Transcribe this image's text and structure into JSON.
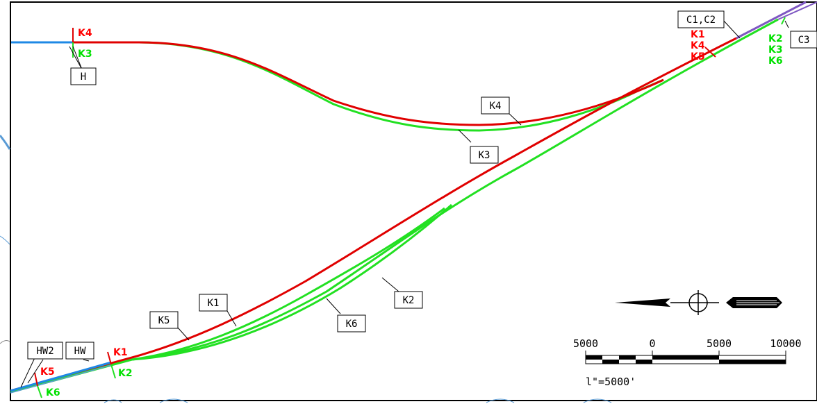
{
  "colors": {
    "red": "#e00000",
    "green": "#22e022",
    "blue": "#1e88e5",
    "purple": "#7e57c2",
    "light_blue": "#5a9bd5"
  },
  "callouts": {
    "h": "H",
    "k4_top": "K4",
    "k3_mid": "K3",
    "c1c2": "C1,C2",
    "c3": "C3",
    "k1": "K1",
    "k5": "K5",
    "k2": "K2",
    "k6": "K6",
    "hw2": "HW2",
    "hw": "HW"
  },
  "markers": {
    "top_left_red": "K4",
    "top_left_green": "K3",
    "top_right_red": [
      "K1",
      "K4",
      "K5"
    ],
    "top_right_green": [
      "K2",
      "K3",
      "K6"
    ],
    "bottom_red_k1": "K1",
    "bottom_green_k2": "K2",
    "bottom_red_k5": "K5",
    "bottom_green_k6": "K6"
  },
  "scale_bar": {
    "labels": [
      "5000",
      "0",
      "5000",
      "10000"
    ],
    "caption": "l\"=5000'"
  },
  "icons": {
    "north_arrow": "north-arrow-icon"
  }
}
